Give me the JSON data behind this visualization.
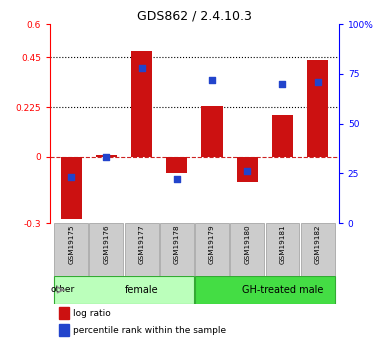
{
  "title": "GDS862 / 2.4.10.3",
  "samples": [
    "GSM19175",
    "GSM19176",
    "GSM19177",
    "GSM19178",
    "GSM19179",
    "GSM19180",
    "GSM19181",
    "GSM19182"
  ],
  "log_ratio": [
    -0.28,
    0.01,
    0.48,
    -0.075,
    0.23,
    -0.115,
    0.19,
    0.44
  ],
  "percentile_rank": [
    23,
    33,
    78,
    22,
    72,
    26,
    70,
    71
  ],
  "groups": [
    {
      "label": "female",
      "start": 0,
      "end": 4,
      "color": "#bbffbb"
    },
    {
      "label": "GH-treated male",
      "start": 4,
      "end": 8,
      "color": "#44dd44"
    }
  ],
  "left_ylim": [
    -0.3,
    0.6
  ],
  "left_yticks": [
    -0.3,
    0,
    0.225,
    0.45,
    0.6
  ],
  "left_ytick_labels": [
    "-0.3",
    "0",
    "0.225",
    "0.45",
    "0.6"
  ],
  "right_ylim": [
    0,
    100
  ],
  "right_yticks": [
    0,
    25,
    50,
    75,
    100
  ],
  "right_ytick_labels": [
    "0",
    "25",
    "50",
    "75",
    "100%"
  ],
  "hlines": [
    0.225,
    0.45
  ],
  "bar_color": "#cc1111",
  "dot_color": "#2244cc",
  "bar_width": 0.6,
  "dot_size": 22,
  "background_color": "#ffffff",
  "legend_log_ratio": "log ratio",
  "legend_percentile": "percentile rank within the sample",
  "other_label": "other"
}
